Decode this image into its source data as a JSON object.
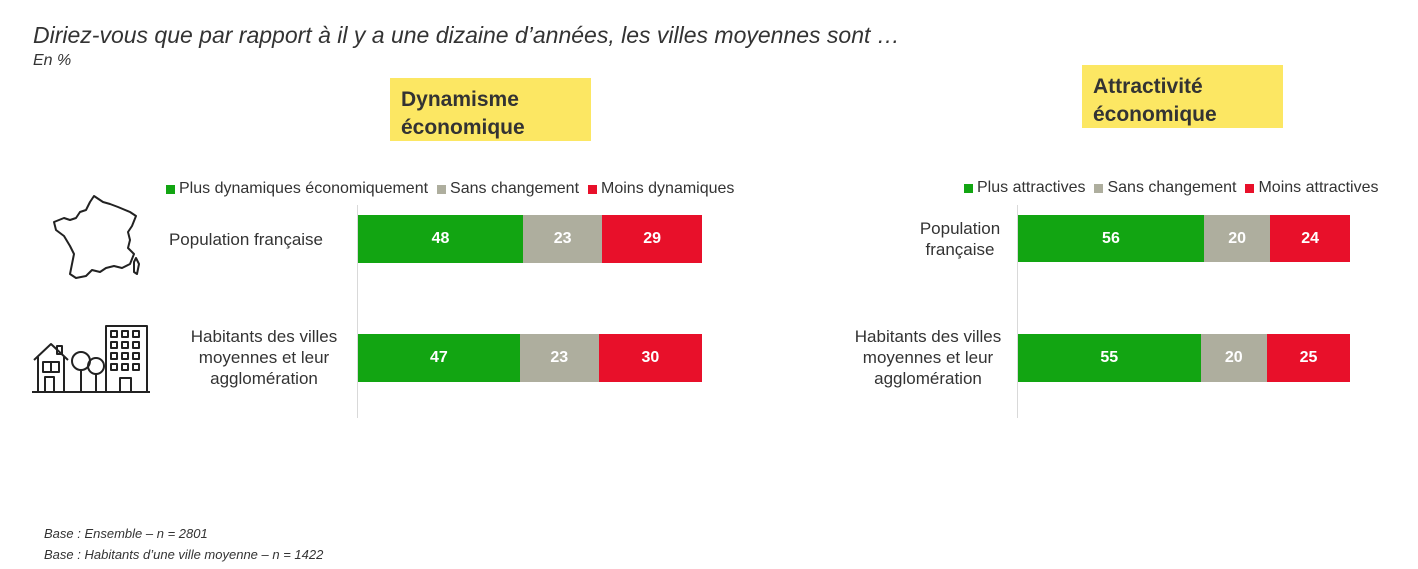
{
  "title": "Diriez-vous que par rapport à il y a une dizaine d’années, les villes moyennes sont …",
  "subtitle": "En %",
  "colors": {
    "green": "#12a512",
    "grey": "#aeae9e",
    "red": "#e8102a",
    "highlight": "#fce763"
  },
  "icons": {
    "france": "france-map-icon",
    "town": "town-buildings-icon"
  },
  "panels": [
    {
      "title_line1": "Dynamisme",
      "title_line2": "économique",
      "legend": [
        "Plus dynamiques économiquement",
        "Sans changement",
        "Moins dynamiques"
      ],
      "rows": [
        {
          "label": "Population française"
        },
        {
          "label": "Habitants des villes moyennes et leur agglomération"
        }
      ]
    },
    {
      "title_line1": "Attractivité",
      "title_line2": "économique",
      "legend": [
        "Plus attractives",
        "Sans changement",
        "Moins attractives"
      ],
      "rows": [
        {
          "label": "Population française"
        },
        {
          "label": "Habitants des villes moyennes et leur agglomération"
        }
      ]
    }
  ],
  "chart_data": [
    {
      "type": "bar",
      "orientation": "horizontal",
      "stacked": true,
      "title": "Dynamisme économique",
      "categories": [
        "Population française",
        "Habitants des villes moyennes et leur agglomération"
      ],
      "series": [
        {
          "name": "Plus dynamiques économiquement",
          "values": [
            48,
            47
          ]
        },
        {
          "name": "Sans changement",
          "values": [
            23,
            23
          ]
        },
        {
          "name": "Moins dynamiques",
          "values": [
            29,
            30
          ]
        }
      ],
      "xlim": [
        0,
        100
      ],
      "grid": false,
      "legend_position": "top"
    },
    {
      "type": "bar",
      "orientation": "horizontal",
      "stacked": true,
      "title": "Attractivité économique",
      "categories": [
        "Population française",
        "Habitants des villes moyennes et leur agglomération"
      ],
      "series": [
        {
          "name": "Plus attractives",
          "values": [
            56,
            55
          ]
        },
        {
          "name": "Sans changement",
          "values": [
            20,
            20
          ]
        },
        {
          "name": "Moins attractives",
          "values": [
            24,
            25
          ]
        }
      ],
      "xlim": [
        0,
        100
      ],
      "grid": false,
      "legend_position": "top"
    }
  ],
  "base_notes": [
    "Base : Ensemble – n = 2801",
    "Base : Habitants d’une ville moyenne – n = 1422"
  ]
}
